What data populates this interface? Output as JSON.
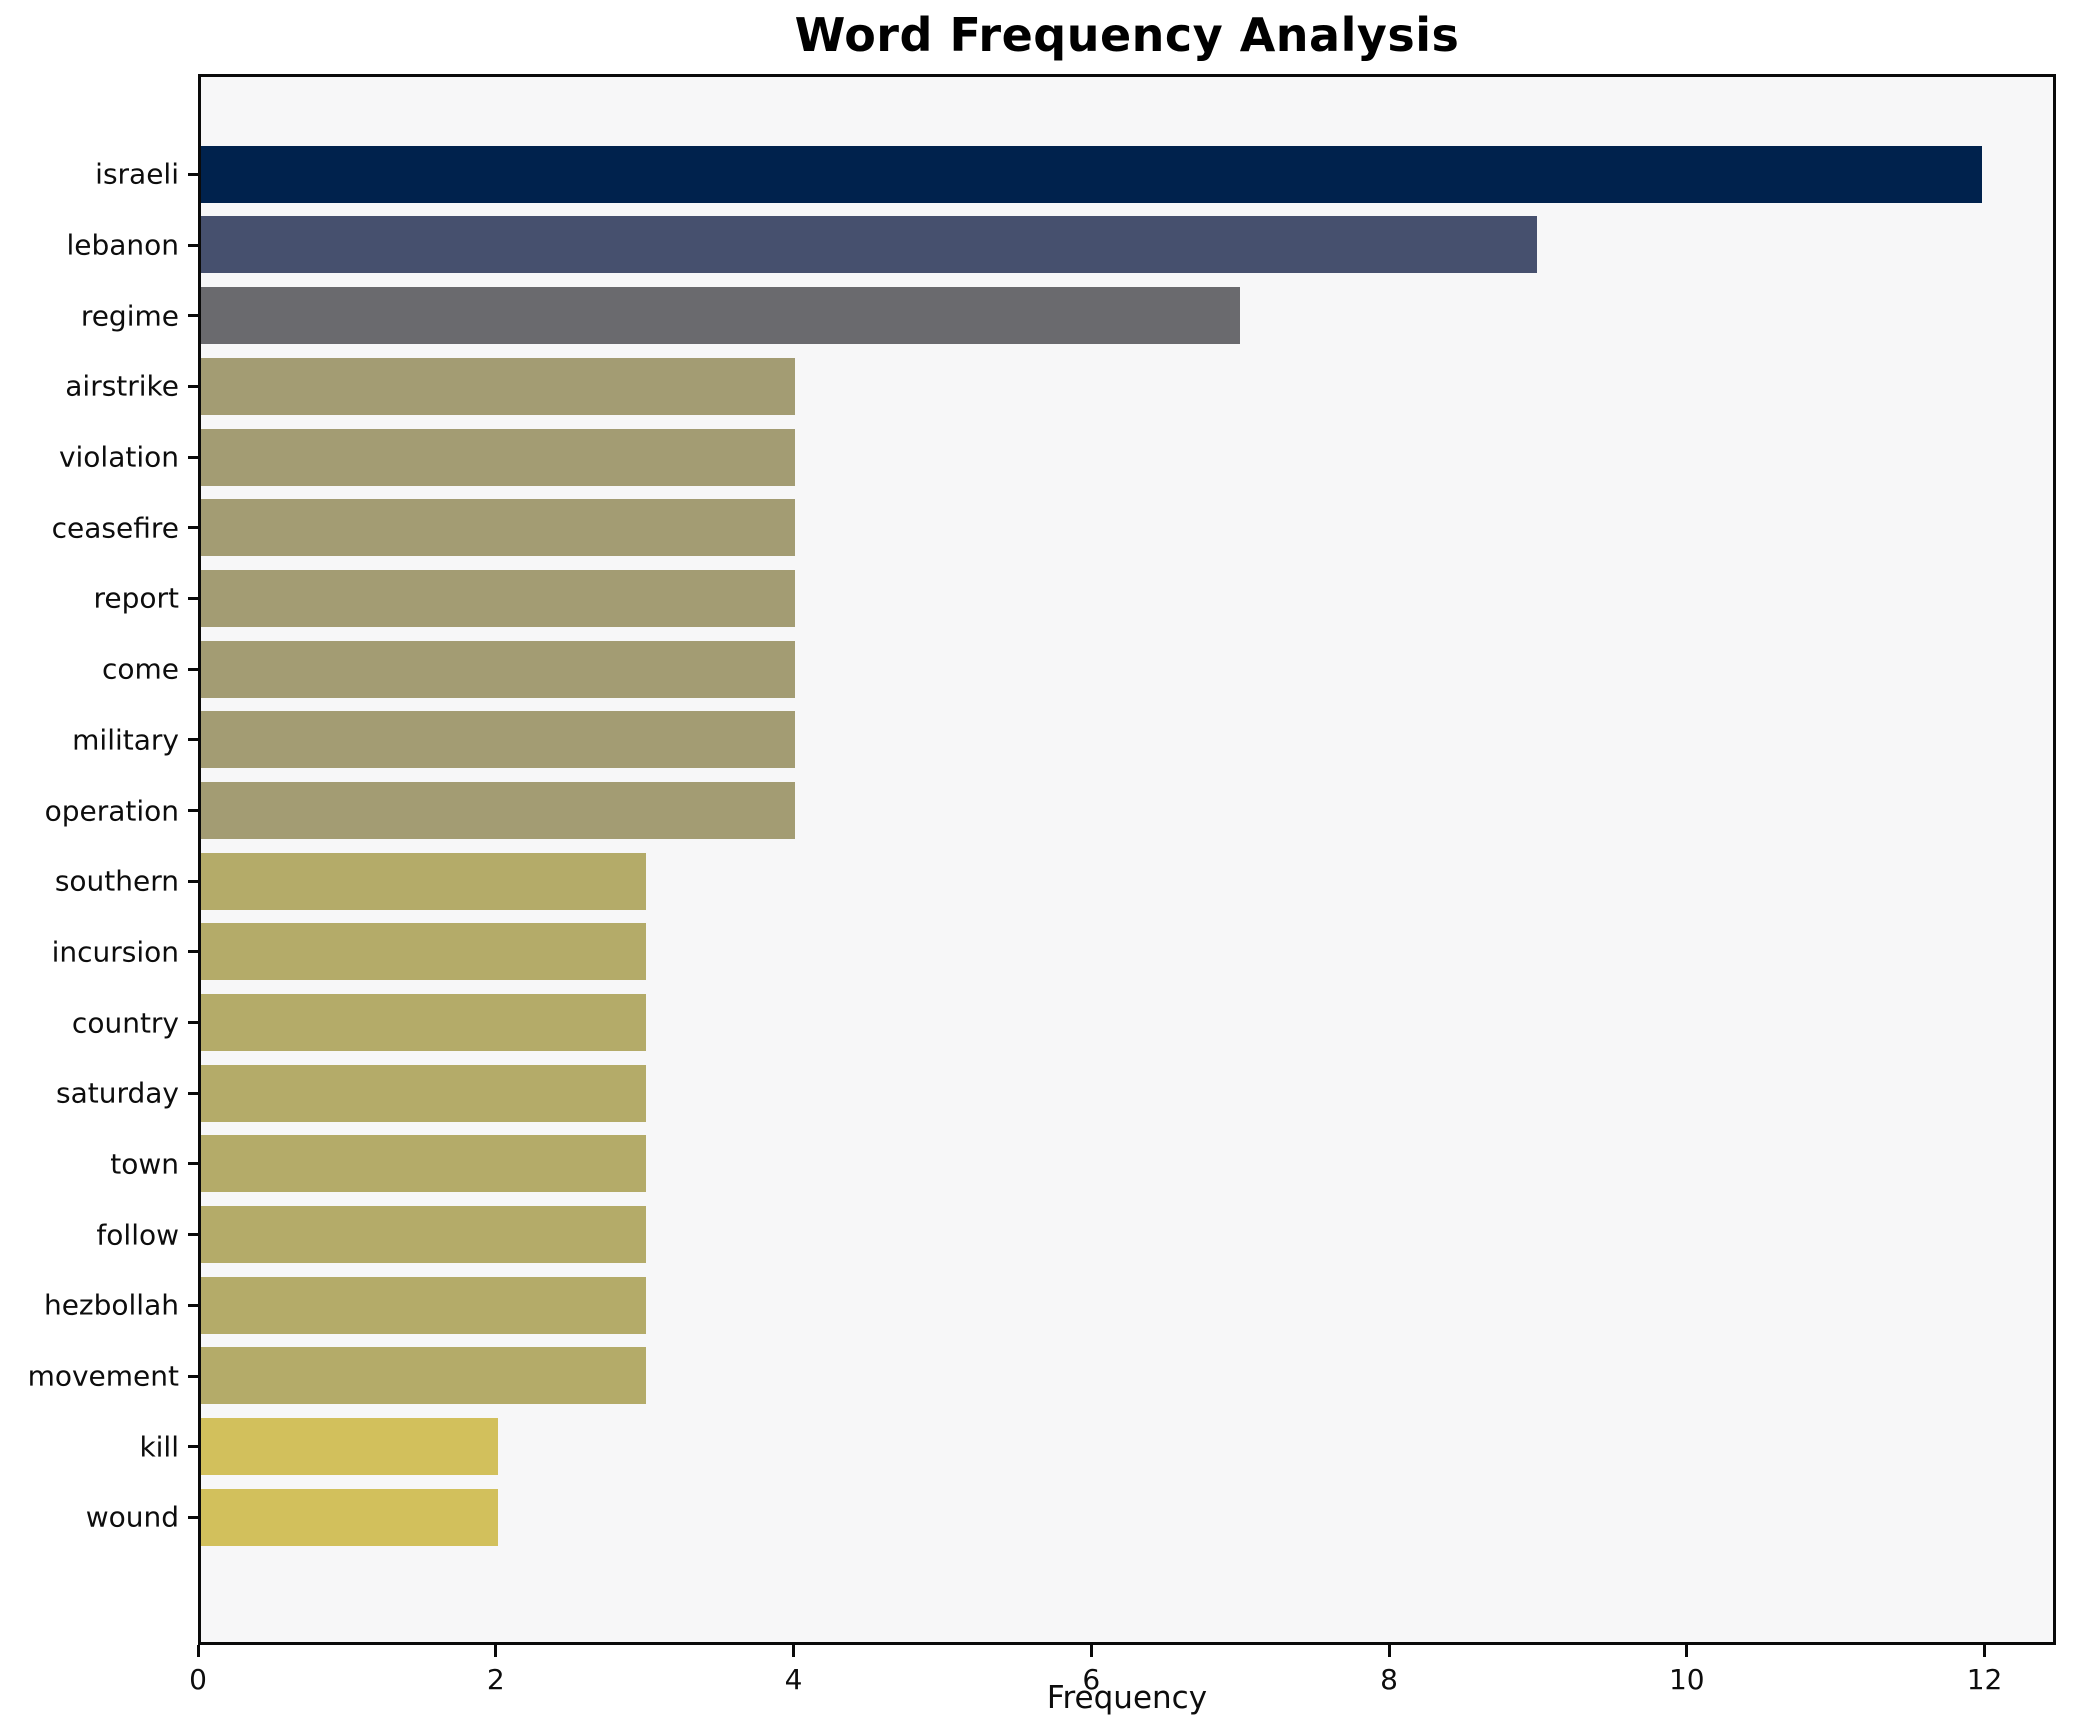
{
  "title": "Word Frequency Analysis",
  "chart_data": {
    "type": "bar",
    "orientation": "horizontal",
    "title": "Word Frequency Analysis",
    "xlabel": "Frequency",
    "ylabel": "",
    "categories": [
      "israeli",
      "lebanon",
      "regime",
      "airstrike",
      "violation",
      "ceasefire",
      "report",
      "come",
      "military",
      "operation",
      "southern",
      "incursion",
      "country",
      "saturday",
      "town",
      "follow",
      "hezbollah",
      "movement",
      "kill",
      "wound"
    ],
    "values": [
      12,
      9,
      7,
      4,
      4,
      4,
      4,
      4,
      4,
      4,
      3,
      3,
      3,
      3,
      3,
      3,
      3,
      3,
      2,
      2
    ],
    "bar_colors": [
      "#00224d",
      "#46506e",
      "#6a6a6e",
      "#a39c73",
      "#a39c73",
      "#a39c73",
      "#a39c73",
      "#a39c73",
      "#a39c73",
      "#a39c73",
      "#b4ab69",
      "#b4ab69",
      "#b4ab69",
      "#b4ab69",
      "#b4ab69",
      "#b4ab69",
      "#b4ab69",
      "#b4ab69",
      "#d2c05c",
      "#d2c05c"
    ],
    "xticks": [
      0,
      2,
      4,
      6,
      8,
      10,
      12
    ],
    "xlim": [
      0,
      12.48
    ],
    "grid": false,
    "legend": null,
    "colormap": "cividis_r",
    "plot_background": "#f7f7f8",
    "figure_background": "#ffffff",
    "spine_color": "#0a0a0a",
    "text_color": "#0d0d0d"
  }
}
